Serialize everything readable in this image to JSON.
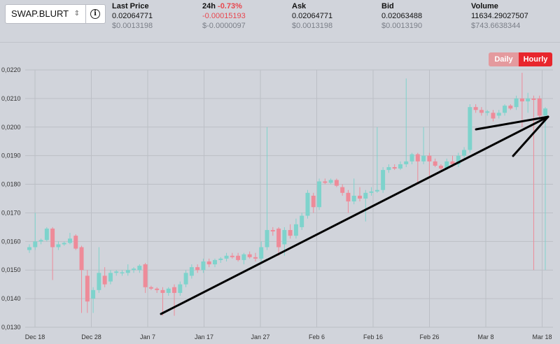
{
  "market": {
    "pair": "SWAP.BLURT"
  },
  "stats": {
    "last_price": {
      "label": "Last Price",
      "value": "0.02064771",
      "sub": "$0.0013198"
    },
    "change_24h": {
      "label": "24h",
      "pct": "-0.73%",
      "value": "-0.00015193",
      "sub": "$-0.0000097"
    },
    "ask": {
      "label": "Ask",
      "value": "0.02064771",
      "sub": "$0.0013198"
    },
    "bid": {
      "label": "Bid",
      "value": "0.02063488",
      "sub": "$0.0013190"
    },
    "volume": {
      "label": "Volume",
      "value": "11634.29027507",
      "sub": "$743.6638344"
    }
  },
  "interval": {
    "daily_label": "Daily",
    "hourly_label": "Hourly",
    "selected": "Hourly"
  },
  "colors": {
    "up": "#7ed3cc",
    "down": "#ee8b99",
    "toggle_selected": "#e8262d",
    "toggle_unselected": "#e49a9e",
    "negative_text": "#e8474f",
    "annotation": "#000000"
  },
  "chart_data": {
    "type": "candlestick",
    "ylim": [
      0.013,
      0.022
    ],
    "y_ticks": [
      "0,0130",
      "0,0140",
      "0,0150",
      "0,0160",
      "0,0170",
      "0,0180",
      "0,0190",
      "0,0200",
      "0,0210",
      "0,0220"
    ],
    "x_ticks": [
      "Dec 18",
      "Dec 28",
      "Jan 7",
      "Jan 17",
      "Jan 27",
      "Feb 6",
      "Feb 16",
      "Feb 26",
      "Mar 8",
      "Mar 18"
    ],
    "grid": true,
    "candles": [
      {
        "o": 0.0157,
        "h": 0.0159,
        "l": 0.0156,
        "c": 0.0158
      },
      {
        "o": 0.0158,
        "h": 0.017,
        "l": 0.0157,
        "c": 0.016
      },
      {
        "o": 0.016,
        "h": 0.0161,
        "l": 0.0159,
        "c": 0.01605
      },
      {
        "o": 0.01605,
        "h": 0.0165,
        "l": 0.016,
        "c": 0.01645
      },
      {
        "o": 0.01645,
        "h": 0.0165,
        "l": 0.01465,
        "c": 0.0158
      },
      {
        "o": 0.0158,
        "h": 0.016,
        "l": 0.0157,
        "c": 0.0159
      },
      {
        "o": 0.0159,
        "h": 0.016,
        "l": 0.01585,
        "c": 0.01595
      },
      {
        "o": 0.01595,
        "h": 0.0163,
        "l": 0.0159,
        "c": 0.0161
      },
      {
        "o": 0.0162,
        "h": 0.01625,
        "l": 0.0157,
        "c": 0.01575
      },
      {
        "o": 0.0158,
        "h": 0.01585,
        "l": 0.0135,
        "c": 0.015
      },
      {
        "o": 0.0148,
        "h": 0.015,
        "l": 0.0135,
        "c": 0.0139
      },
      {
        "o": 0.014,
        "h": 0.0144,
        "l": 0.0135,
        "c": 0.0143
      },
      {
        "o": 0.0143,
        "h": 0.0158,
        "l": 0.0142,
        "c": 0.0149
      },
      {
        "o": 0.0148,
        "h": 0.0151,
        "l": 0.0144,
        "c": 0.0145
      },
      {
        "o": 0.0146,
        "h": 0.015,
        "l": 0.0145,
        "c": 0.0149
      },
      {
        "o": 0.0149,
        "h": 0.015,
        "l": 0.0148,
        "c": 0.01495
      },
      {
        "o": 0.0149,
        "h": 0.015,
        "l": 0.0148,
        "c": 0.01492
      },
      {
        "o": 0.0149,
        "h": 0.0152,
        "l": 0.0148,
        "c": 0.015
      },
      {
        "o": 0.015,
        "h": 0.0151,
        "l": 0.0149,
        "c": 0.01505
      },
      {
        "o": 0.015,
        "h": 0.0152,
        "l": 0.0149,
        "c": 0.01515
      },
      {
        "o": 0.0152,
        "h": 0.01525,
        "l": 0.0142,
        "c": 0.0144
      },
      {
        "o": 0.0144,
        "h": 0.01445,
        "l": 0.0143,
        "c": 0.01435
      },
      {
        "o": 0.01435,
        "h": 0.0144,
        "l": 0.0142,
        "c": 0.0143
      },
      {
        "o": 0.0143,
        "h": 0.0144,
        "l": 0.0134,
        "c": 0.0142
      },
      {
        "o": 0.0142,
        "h": 0.0144,
        "l": 0.0141,
        "c": 0.01435
      },
      {
        "o": 0.0144,
        "h": 0.0145,
        "l": 0.0134,
        "c": 0.0142
      },
      {
        "o": 0.0142,
        "h": 0.0146,
        "l": 0.0141,
        "c": 0.0145
      },
      {
        "o": 0.0145,
        "h": 0.015,
        "l": 0.0144,
        "c": 0.0149
      },
      {
        "o": 0.0148,
        "h": 0.0152,
        "l": 0.0147,
        "c": 0.0151
      },
      {
        "o": 0.0151,
        "h": 0.0152,
        "l": 0.0149,
        "c": 0.015
      },
      {
        "o": 0.015,
        "h": 0.0154,
        "l": 0.0149,
        "c": 0.0153
      },
      {
        "o": 0.0153,
        "h": 0.0154,
        "l": 0.0151,
        "c": 0.0152
      },
      {
        "o": 0.0152,
        "h": 0.0154,
        "l": 0.0151,
        "c": 0.01535
      },
      {
        "o": 0.01535,
        "h": 0.01545,
        "l": 0.01525,
        "c": 0.0154
      },
      {
        "o": 0.0154,
        "h": 0.0156,
        "l": 0.0153,
        "c": 0.0155
      },
      {
        "o": 0.0155,
        "h": 0.0156,
        "l": 0.0154,
        "c": 0.01545
      },
      {
        "o": 0.0155,
        "h": 0.0156,
        "l": 0.0153,
        "c": 0.01535
      },
      {
        "o": 0.01535,
        "h": 0.0156,
        "l": 0.0152,
        "c": 0.01555
      },
      {
        "o": 0.01555,
        "h": 0.01565,
        "l": 0.0154,
        "c": 0.01545
      },
      {
        "o": 0.01545,
        "h": 0.0156,
        "l": 0.0153,
        "c": 0.0154
      },
      {
        "o": 0.0154,
        "h": 0.016,
        "l": 0.0153,
        "c": 0.0158
      },
      {
        "o": 0.0158,
        "h": 0.02,
        "l": 0.0157,
        "c": 0.0164
      },
      {
        "o": 0.0164,
        "h": 0.0165,
        "l": 0.0162,
        "c": 0.01635
      },
      {
        "o": 0.01645,
        "h": 0.0165,
        "l": 0.0155,
        "c": 0.0158
      },
      {
        "o": 0.0159,
        "h": 0.0165,
        "l": 0.0155,
        "c": 0.0164
      },
      {
        "o": 0.0164,
        "h": 0.0166,
        "l": 0.0161,
        "c": 0.0162
      },
      {
        "o": 0.0162,
        "h": 0.0168,
        "l": 0.0161,
        "c": 0.0166
      },
      {
        "o": 0.0165,
        "h": 0.017,
        "l": 0.0164,
        "c": 0.0169
      },
      {
        "o": 0.0169,
        "h": 0.0178,
        "l": 0.0168,
        "c": 0.0177
      },
      {
        "o": 0.0176,
        "h": 0.0177,
        "l": 0.017,
        "c": 0.0172
      },
      {
        "o": 0.0172,
        "h": 0.0182,
        "l": 0.0171,
        "c": 0.0181
      },
      {
        "o": 0.0181,
        "h": 0.0182,
        "l": 0.018,
        "c": 0.01805
      },
      {
        "o": 0.01805,
        "h": 0.0182,
        "l": 0.018,
        "c": 0.01815
      },
      {
        "o": 0.01815,
        "h": 0.0182,
        "l": 0.0179,
        "c": 0.01795
      },
      {
        "o": 0.0179,
        "h": 0.018,
        "l": 0.0176,
        "c": 0.0177
      },
      {
        "o": 0.0177,
        "h": 0.0178,
        "l": 0.017,
        "c": 0.0174
      },
      {
        "o": 0.0174,
        "h": 0.0182,
        "l": 0.0173,
        "c": 0.0176
      },
      {
        "o": 0.0176,
        "h": 0.0179,
        "l": 0.0174,
        "c": 0.0175
      },
      {
        "o": 0.0175,
        "h": 0.0178,
        "l": 0.0167,
        "c": 0.0177
      },
      {
        "o": 0.0177,
        "h": 0.0179,
        "l": 0.0176,
        "c": 0.01775
      },
      {
        "o": 0.01775,
        "h": 0.02,
        "l": 0.0177,
        "c": 0.0178
      },
      {
        "o": 0.0178,
        "h": 0.0186,
        "l": 0.0177,
        "c": 0.0185
      },
      {
        "o": 0.0185,
        "h": 0.0187,
        "l": 0.0184,
        "c": 0.0186
      },
      {
        "o": 0.0186,
        "h": 0.0187,
        "l": 0.0185,
        "c": 0.01855
      },
      {
        "o": 0.01855,
        "h": 0.0188,
        "l": 0.0185,
        "c": 0.0187
      },
      {
        "o": 0.0187,
        "h": 0.0217,
        "l": 0.0186,
        "c": 0.0188
      },
      {
        "o": 0.0188,
        "h": 0.0191,
        "l": 0.0187,
        "c": 0.01905
      },
      {
        "o": 0.01905,
        "h": 0.0191,
        "l": 0.018,
        "c": 0.0188
      },
      {
        "o": 0.0188,
        "h": 0.02,
        "l": 0.0187,
        "c": 0.019
      },
      {
        "o": 0.019,
        "h": 0.0191,
        "l": 0.0183,
        "c": 0.0188
      },
      {
        "o": 0.0188,
        "h": 0.0189,
        "l": 0.0186,
        "c": 0.01865
      },
      {
        "o": 0.01865,
        "h": 0.0187,
        "l": 0.0185,
        "c": 0.01855
      },
      {
        "o": 0.01855,
        "h": 0.0189,
        "l": 0.0185,
        "c": 0.0188
      },
      {
        "o": 0.0188,
        "h": 0.019,
        "l": 0.0186,
        "c": 0.0187
      },
      {
        "o": 0.0187,
        "h": 0.0191,
        "l": 0.0186,
        "c": 0.019
      },
      {
        "o": 0.019,
        "h": 0.0193,
        "l": 0.0189,
        "c": 0.0192
      },
      {
        "o": 0.0192,
        "h": 0.0208,
        "l": 0.0191,
        "c": 0.0207
      },
      {
        "o": 0.0207,
        "h": 0.0208,
        "l": 0.0205,
        "c": 0.0206
      },
      {
        "o": 0.0206,
        "h": 0.0207,
        "l": 0.0204,
        "c": 0.0205
      },
      {
        "o": 0.0205,
        "h": 0.0206,
        "l": 0.0204,
        "c": 0.02055
      },
      {
        "o": 0.0205,
        "h": 0.0206,
        "l": 0.0202,
        "c": 0.0203
      },
      {
        "o": 0.0204,
        "h": 0.0206,
        "l": 0.0203,
        "c": 0.0205
      },
      {
        "o": 0.0205,
        "h": 0.0208,
        "l": 0.0204,
        "c": 0.02075
      },
      {
        "o": 0.02075,
        "h": 0.0208,
        "l": 0.0206,
        "c": 0.02065
      },
      {
        "o": 0.0207,
        "h": 0.0211,
        "l": 0.0206,
        "c": 0.021
      },
      {
        "o": 0.021,
        "h": 0.0219,
        "l": 0.02,
        "c": 0.0209
      },
      {
        "o": 0.0209,
        "h": 0.0212,
        "l": 0.0205,
        "c": 0.021
      },
      {
        "o": 0.021,
        "h": 0.0211,
        "l": 0.015,
        "c": 0.02095
      },
      {
        "o": 0.021,
        "h": 0.0211,
        "l": 0.0203,
        "c": 0.0204
      },
      {
        "o": 0.0204,
        "h": 0.0207,
        "l": 0.015,
        "c": 0.02065
      }
    ]
  }
}
